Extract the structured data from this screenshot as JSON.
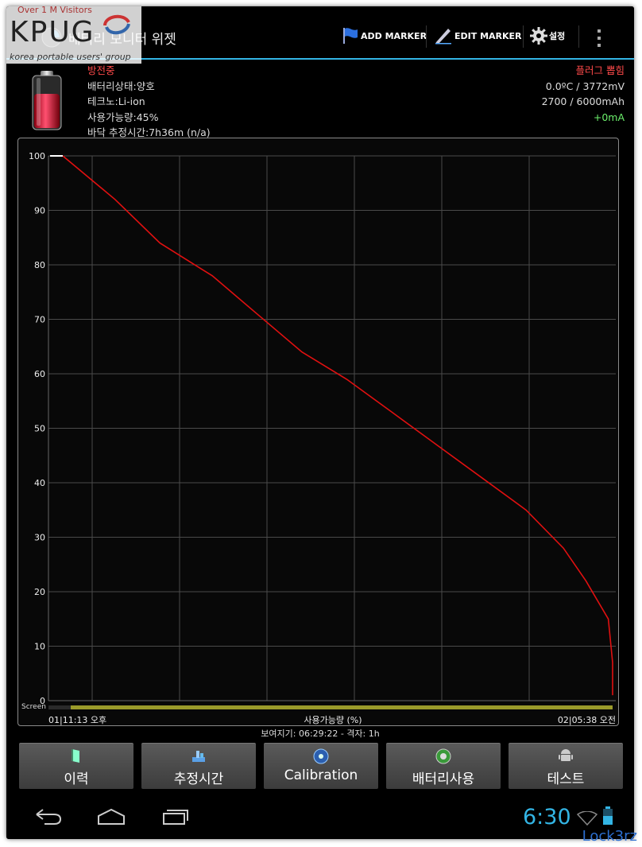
{
  "watermark": {
    "top_text": "Over 1 M Visitors",
    "logo": "KPUG",
    "subtitle": "korea portable users' group"
  },
  "app": {
    "title": "배터리 모니터 위젯"
  },
  "actionbar": {
    "add_marker": "ADD MARKER",
    "edit_marker": "EDIT MARKER",
    "settings": "설정",
    "overflow_icon": "overflow-menu-icon"
  },
  "status": {
    "charging_state": "방전중",
    "battery_health": "배터리상태:양호",
    "technology": "테크노:Li-ion",
    "capacity_level": "사용가능량:45%",
    "estimated_time": "바닥 추정시간:7h36m (n/a)",
    "plug_state": "플러그 뽑힘",
    "temp_voltage": "0.0ºC / 3772mV",
    "capacity_mah": "2700 / 6000mAh",
    "current": "+0mA"
  },
  "colors": {
    "accent": "#33b5e5",
    "line": "#e01010",
    "screen_bar": "#9a9a2a",
    "discharging": "#ff4a4a",
    "current": "#6cf06c"
  },
  "chart_data": {
    "type": "line",
    "xlabel": "사용가능량 (%)",
    "x_start_label": "01|11:13 오후",
    "x_end_label": "02|05:38 오전",
    "screen_label": "Screen",
    "ylim": [
      0,
      100
    ],
    "yticks": [
      100,
      90,
      80,
      70,
      60,
      50,
      40,
      30,
      20,
      10,
      0
    ],
    "grid": true,
    "x_hours": [
      0.0,
      0.7,
      1.3,
      2.0,
      2.6,
      3.2,
      3.8,
      4.4,
      5.0,
      5.6,
      6.2,
      6.7,
      7.0,
      7.3,
      7.5,
      7.6
    ],
    "y_percent": [
      100,
      92,
      84,
      78,
      71,
      64,
      59,
      53,
      47,
      41,
      35,
      28,
      22,
      15,
      7,
      1
    ],
    "series": [
      {
        "values": [
          100,
          92,
          84,
          78,
          71,
          64,
          59,
          53,
          47,
          41,
          35,
          28,
          22,
          15,
          7,
          1
        ]
      }
    ]
  },
  "footer": {
    "visible_range": "보여지기: 06:29:22 - 격자: 1h"
  },
  "buttons": [
    {
      "label": "이력",
      "icon": "history-icon"
    },
    {
      "label": "추정시간",
      "icon": "estimate-icon"
    },
    {
      "label": "Calibration",
      "icon": "calibration-icon"
    },
    {
      "label": "배터리사용",
      "icon": "battery-usage-icon"
    },
    {
      "label": "테스트",
      "icon": "android-icon"
    }
  ],
  "navbar": {
    "clock": "6:30"
  },
  "credit": "Lock3rz"
}
